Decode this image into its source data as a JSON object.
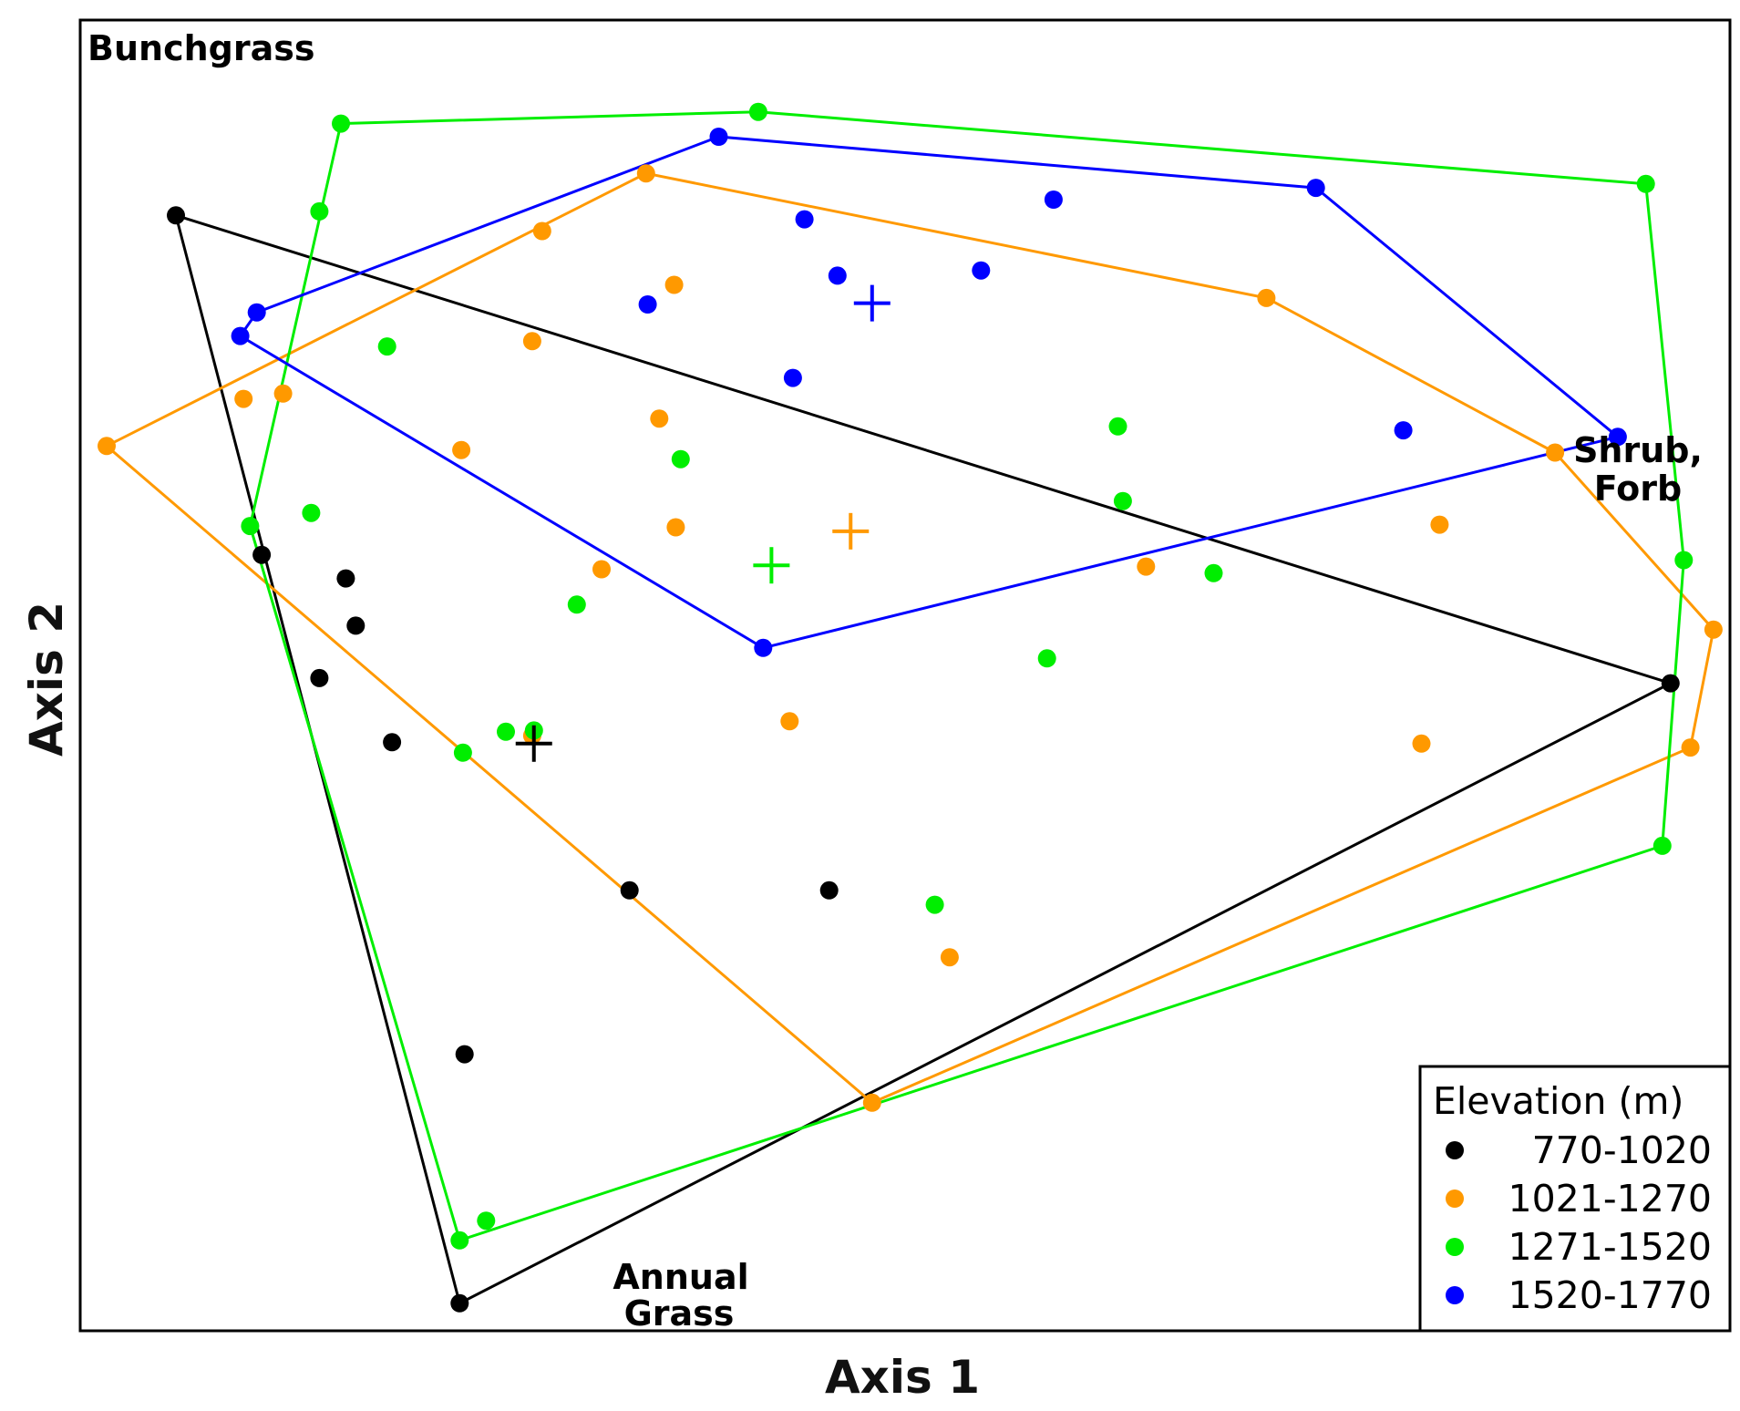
{
  "chart_data": {
    "type": "scatter",
    "title": "",
    "xlabel": "Axis 1",
    "ylabel": "Axis 2",
    "xlim": [
      0,
      100
    ],
    "ylim": [
      0,
      100
    ],
    "grid": false,
    "legend_title": "Elevation (m)",
    "legend_position": "bottom-right",
    "annotations": [
      {
        "id": "bunchgrass",
        "lines": [
          "Bunchgrass"
        ]
      },
      {
        "id": "shrub-forb",
        "lines": [
          "Shrub,",
          "Forb"
        ]
      },
      {
        "id": "annual-grass",
        "lines": [
          "Annual",
          "Grass"
        ]
      }
    ],
    "series": [
      {
        "name": "770-1020",
        "color": "#000000",
        "points": [
          [
            5.8,
            85.1
          ],
          [
            11.0,
            59.2
          ],
          [
            16.1,
            57.4
          ],
          [
            16.7,
            53.8
          ],
          [
            14.5,
            49.8
          ],
          [
            18.9,
            44.9
          ],
          [
            33.3,
            33.6
          ],
          [
            45.4,
            33.6
          ],
          [
            23.3,
            21.1
          ],
          [
            23.0,
            2.1
          ],
          [
            96.4,
            49.4
          ]
        ],
        "hull": [
          [
            5.8,
            85.1
          ],
          [
            96.4,
            49.4
          ],
          [
            23.0,
            2.1
          ]
        ],
        "centroid": [
          27.5,
          44.8
        ]
      },
      {
        "name": "1021-1270",
        "color": "#ff9900",
        "points": [
          [
            1.6,
            67.5
          ],
          [
            9.9,
            71.1
          ],
          [
            12.3,
            71.5
          ],
          [
            23.1,
            67.2
          ],
          [
            27.4,
            75.5
          ],
          [
            28.0,
            83.9
          ],
          [
            34.3,
            88.3
          ],
          [
            36.0,
            79.8
          ],
          [
            35.1,
            69.6
          ],
          [
            36.1,
            61.3
          ],
          [
            31.6,
            58.1
          ],
          [
            27.4,
            45.4
          ],
          [
            43.0,
            46.5
          ],
          [
            52.7,
            28.5
          ],
          [
            48.0,
            17.4
          ],
          [
            64.6,
            58.3
          ],
          [
            82.4,
            61.5
          ],
          [
            89.4,
            67.0
          ],
          [
            71.9,
            78.8
          ],
          [
            99.0,
            53.5
          ],
          [
            97.6,
            44.5
          ],
          [
            81.3,
            44.8
          ]
        ],
        "hull": [
          [
            34.3,
            88.3
          ],
          [
            71.9,
            78.8
          ],
          [
            89.4,
            67.0
          ],
          [
            99.0,
            53.5
          ],
          [
            97.6,
            44.5
          ],
          [
            48.0,
            17.4
          ],
          [
            1.6,
            67.5
          ]
        ],
        "centroid": [
          46.7,
          61.0
        ]
      },
      {
        "name": "1271-1520",
        "color": "#00ee00",
        "points": [
          [
            15.8,
            92.1
          ],
          [
            41.1,
            93.0
          ],
          [
            94.9,
            87.5
          ],
          [
            14.5,
            85.4
          ],
          [
            18.6,
            75.1
          ],
          [
            36.4,
            66.5
          ],
          [
            62.9,
            69.0
          ],
          [
            63.2,
            63.3
          ],
          [
            68.7,
            57.8
          ],
          [
            58.6,
            51.3
          ],
          [
            30.1,
            55.4
          ],
          [
            14.0,
            62.4
          ],
          [
            10.3,
            61.4
          ],
          [
            25.8,
            45.7
          ],
          [
            27.5,
            45.8
          ],
          [
            23.2,
            44.1
          ],
          [
            51.8,
            32.5
          ],
          [
            24.6,
            8.4
          ],
          [
            23.0,
            6.9
          ],
          [
            97.2,
            58.8
          ],
          [
            95.9,
            37.0
          ]
        ],
        "hull": [
          [
            15.8,
            92.1
          ],
          [
            41.1,
            93.0
          ],
          [
            94.9,
            87.5
          ],
          [
            97.2,
            58.8
          ],
          [
            95.9,
            37.0
          ],
          [
            23.0,
            6.9
          ],
          [
            10.3,
            61.4
          ]
        ],
        "centroid": [
          41.9,
          58.4
        ]
      },
      {
        "name": "1520-1770",
        "color": "#0000ff",
        "points": [
          [
            38.7,
            91.1
          ],
          [
            59.0,
            86.3
          ],
          [
            74.9,
            87.2
          ],
          [
            43.9,
            84.8
          ],
          [
            45.9,
            80.5
          ],
          [
            34.4,
            78.3
          ],
          [
            54.6,
            80.9
          ],
          [
            43.2,
            72.7
          ],
          [
            80.2,
            68.7
          ],
          [
            93.2,
            68.2
          ],
          [
            10.7,
            77.7
          ],
          [
            9.7,
            75.9
          ],
          [
            41.4,
            52.1
          ]
        ],
        "hull": [
          [
            38.7,
            91.1
          ],
          [
            74.9,
            87.2
          ],
          [
            93.2,
            68.2
          ],
          [
            41.4,
            52.1
          ],
          [
            9.7,
            75.9
          ],
          [
            10.7,
            77.7
          ]
        ],
        "centroid": [
          48.0,
          78.4
        ]
      }
    ]
  }
}
